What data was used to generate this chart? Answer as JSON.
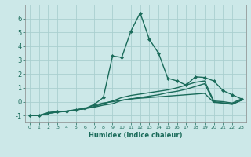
{
  "xlabel": "Humidex (Indice chaleur)",
  "x_values": [
    0,
    1,
    2,
    3,
    4,
    5,
    6,
    7,
    8,
    9,
    10,
    11,
    12,
    13,
    14,
    15,
    16,
    17,
    18,
    19,
    20,
    21,
    22,
    23
  ],
  "lines": [
    {
      "y": [
        -1.0,
        -1.0,
        -0.8,
        -0.7,
        -0.7,
        -0.6,
        -0.5,
        -0.2,
        0.3,
        3.3,
        3.2,
        5.1,
        6.4,
        4.5,
        3.5,
        1.7,
        1.5,
        1.2,
        1.8,
        1.75,
        1.5,
        0.8,
        0.5,
        0.2
      ],
      "color": "#1a6b5a",
      "linewidth": 1.0,
      "marker": "D",
      "markersize": 2.0
    },
    {
      "y": [
        -1.0,
        -1.0,
        -0.8,
        -0.72,
        -0.68,
        -0.58,
        -0.5,
        -0.4,
        -0.25,
        -0.15,
        0.1,
        0.2,
        0.3,
        0.4,
        0.5,
        0.65,
        0.75,
        0.9,
        1.1,
        1.3,
        0.0,
        -0.1,
        -0.2,
        0.1
      ],
      "color": "#1a6b5a",
      "linewidth": 1.0,
      "marker": null
    },
    {
      "y": [
        -1.0,
        -1.0,
        -0.85,
        -0.75,
        -0.7,
        -0.6,
        -0.5,
        -0.35,
        -0.15,
        0.05,
        0.3,
        0.45,
        0.55,
        0.65,
        0.75,
        0.85,
        1.0,
        1.2,
        1.4,
        1.5,
        0.05,
        0.0,
        -0.1,
        0.2
      ],
      "color": "#1a6b5a",
      "linewidth": 1.0,
      "marker": null
    },
    {
      "y": [
        -1.0,
        -1.0,
        -0.85,
        -0.75,
        -0.7,
        -0.6,
        -0.5,
        -0.25,
        -0.1,
        0.0,
        0.1,
        0.2,
        0.25,
        0.3,
        0.35,
        0.4,
        0.45,
        0.5,
        0.55,
        0.6,
        -0.05,
        -0.1,
        -0.15,
        0.1
      ],
      "color": "#1a6b5a",
      "linewidth": 1.0,
      "marker": null
    }
  ],
  "ylim": [
    -1.5,
    7.0
  ],
  "xlim": [
    -0.5,
    23.5
  ],
  "yticks": [
    -1,
    0,
    1,
    2,
    3,
    4,
    5,
    6
  ],
  "xticks": [
    0,
    1,
    2,
    3,
    4,
    5,
    6,
    7,
    8,
    9,
    10,
    11,
    12,
    13,
    14,
    15,
    16,
    17,
    18,
    19,
    20,
    21,
    22,
    23
  ],
  "bg_color": "#cce8e8",
  "grid_color": "#aacfcf",
  "line_color": "#1a6b5a",
  "tick_color": "#1a6b5a",
  "label_color": "#1a6b5a",
  "spine_color": "#888888"
}
